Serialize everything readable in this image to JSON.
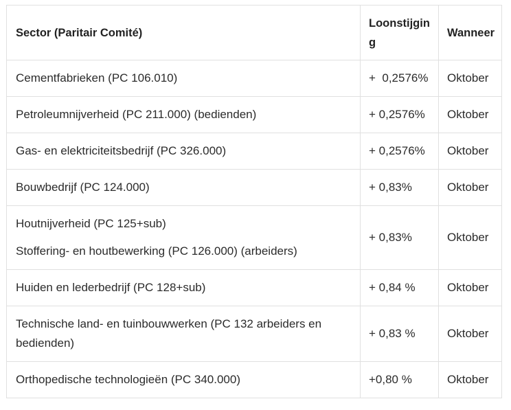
{
  "table": {
    "headers": {
      "sector": "Sector (Paritair Comité)",
      "increase": "Loonstijging",
      "when": "Wanneer"
    },
    "rows": [
      {
        "sector": [
          "Cementfabrieken (PC 106.010)"
        ],
        "increase": "+  0,2576%",
        "when": "Oktober"
      },
      {
        "sector": [
          "Petroleumnijverheid (PC 211.000) (bedienden)"
        ],
        "increase": "+ 0,2576%",
        "when": "Oktober"
      },
      {
        "sector": [
          "Gas- en elektriciteitsbedrijf (PC 326.000)"
        ],
        "increase": "+ 0,2576%",
        "when": "Oktober"
      },
      {
        "sector": [
          "Bouwbedrijf (PC 124.000)"
        ],
        "increase": "+ 0,83%",
        "when": "Oktober"
      },
      {
        "sector": [
          "Houtnijverheid (PC 125+sub)",
          "Stoffering- en houtbewerking (PC 126.000) (arbeiders)"
        ],
        "increase": "+ 0,83%",
        "when": "Oktober"
      },
      {
        "sector": [
          "Huiden en lederbedrijf (PC 128+sub)"
        ],
        "increase": "+ 0,84 %",
        "when": "Oktober"
      },
      {
        "sector": [
          "Technische land- en tuinbouwwerken (PC 132 arbeiders en bedienden)"
        ],
        "increase": "+ 0,83 %",
        "when": "Oktober"
      },
      {
        "sector": [
          "Orthopedische technologieën (PC 340.000)"
        ],
        "increase": "+0,80 %",
        "when": "Oktober"
      }
    ]
  }
}
